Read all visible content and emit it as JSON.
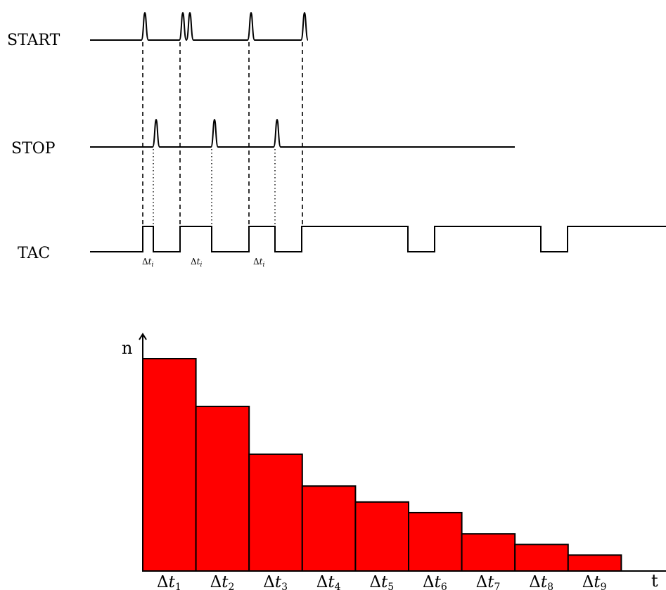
{
  "signals": {
    "start": "START",
    "stop": "STOP",
    "tac": "TAC"
  },
  "tac_intervals": [
    {
      "delta": "Δ",
      "t": "t",
      "sub": "i"
    },
    {
      "delta": "Δ",
      "t": "t",
      "sub": "i"
    },
    {
      "delta": "Δ",
      "t": "t",
      "sub": "i"
    }
  ],
  "histogram": {
    "y_label": "n",
    "x_label": "t",
    "bar_color": "#ff0000",
    "bars": [
      {
        "delta": "Δ",
        "t": "t",
        "sub": "1",
        "value": 1.0
      },
      {
        "delta": "Δ",
        "t": "t",
        "sub": "2",
        "value": 0.775
      },
      {
        "delta": "Δ",
        "t": "t",
        "sub": "3",
        "value": 0.55
      },
      {
        "delta": "Δ",
        "t": "t",
        "sub": "4",
        "value": 0.4
      },
      {
        "delta": "Δ",
        "t": "t",
        "sub": "5",
        "value": 0.325
      },
      {
        "delta": "Δ",
        "t": "t",
        "sub": "6",
        "value": 0.275
      },
      {
        "delta": "Δ",
        "t": "t",
        "sub": "7",
        "value": 0.175
      },
      {
        "delta": "Δ",
        "t": "t",
        "sub": "8",
        "value": 0.125
      },
      {
        "delta": "Δ",
        "t": "t",
        "sub": "9",
        "value": 0.075
      }
    ]
  }
}
